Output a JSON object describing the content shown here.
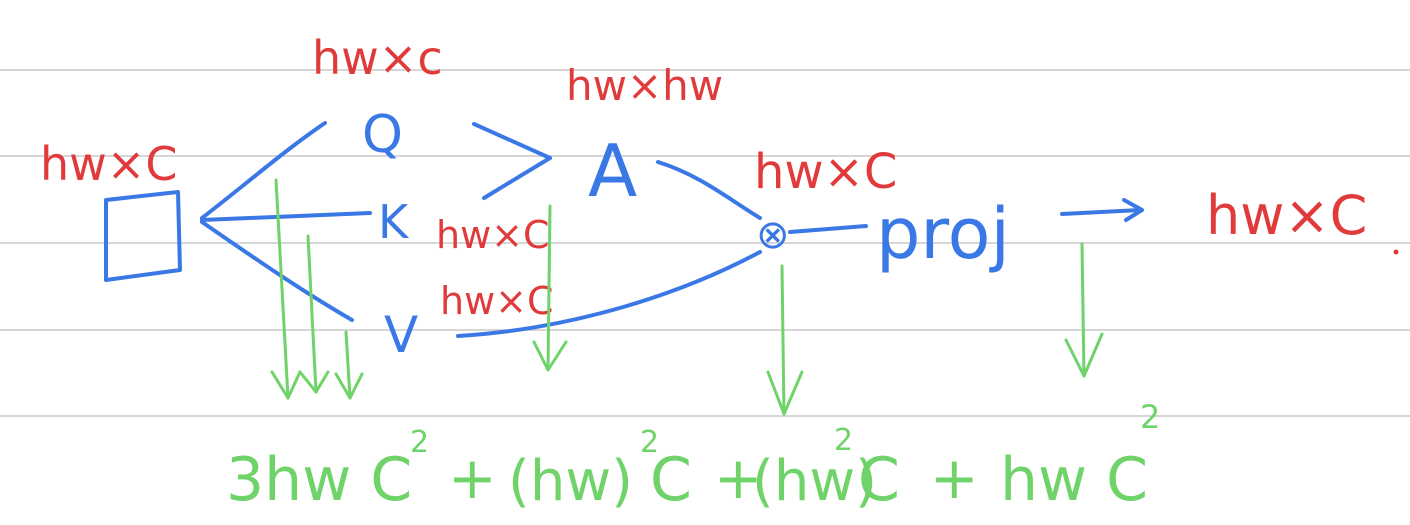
{
  "nodes": {
    "input_box": "□",
    "q": "Q",
    "k": "K",
    "v": "V",
    "a": "A",
    "matmul": "⊗",
    "proj": "proj"
  },
  "labels": {
    "input": "hw×C",
    "q": "hw×c",
    "a": "hw×hw",
    "k": "hw×C",
    "v": "hw×C",
    "matmul": "hw×C",
    "output": "hw×C"
  },
  "colors": {
    "blue": "#3a78e6",
    "red": "#e03a3a",
    "green": "#6fd36a"
  },
  "formula": {
    "t1": "3hw C",
    "t1_sup": "2",
    "p1": "+",
    "t2a": "(hw)",
    "t2_sup": "2",
    "t2b": "C",
    "p2": "+",
    "t3a": "(hw)",
    "t3_sup": "2",
    "t3b": "C",
    "p3": "+",
    "t4": "hw C",
    "t4_sup": "2"
  }
}
